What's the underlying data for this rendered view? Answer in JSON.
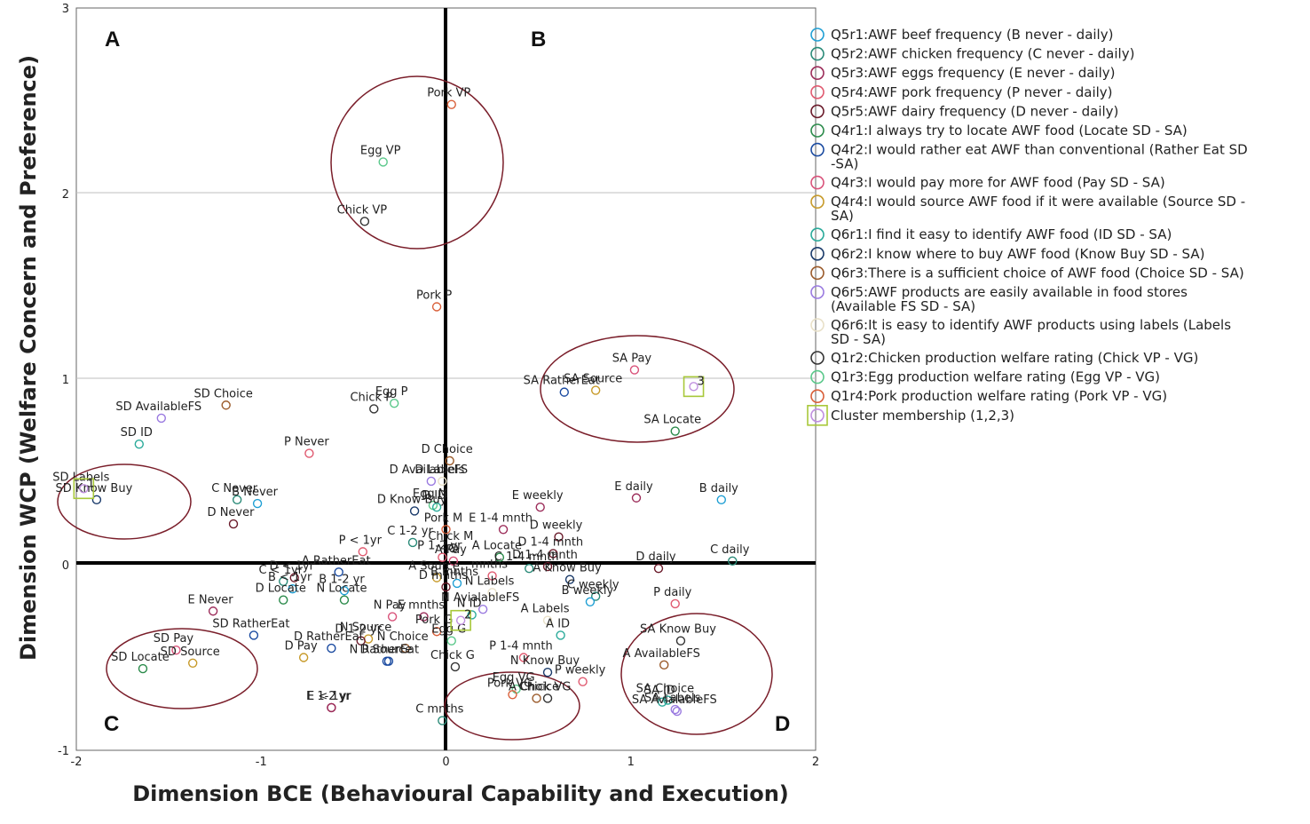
{
  "chart_data": {
    "type": "scatter",
    "xlabel": "Dimension BCE (Behavioural Capability and Execution)",
    "ylabel": "Dimension WCP (Welfare Concern and Preference)",
    "xlim": [
      -2,
      2
    ],
    "ylim": [
      -1,
      3
    ],
    "xticks": [
      -2,
      -1,
      0,
      1,
      2
    ],
    "yticks": [
      -1,
      0,
      1,
      2,
      3
    ],
    "grid": "horizontal",
    "quadrants": [
      "A",
      "B",
      "C",
      "D"
    ],
    "legend": [
      {
        "label": "Q5r1:AWF beef frequency (B never - daily)",
        "color": "#1f9fd4"
      },
      {
        "label": "Q5r2:AWF chicken frequency (C never - daily)",
        "color": "#2a8a78"
      },
      {
        "label": "Q5r3:AWF eggs frequency (E never - daily)",
        "color": "#9c2d5a"
      },
      {
        "label": "Q5r4:AWF pork frequency (P never - daily)",
        "color": "#e05a70"
      },
      {
        "label": "Q5r5:AWF dairy frequency (D never - daily)",
        "color": "#6a1a2a"
      },
      {
        "label": "Q4r1:I always try to locate AWF food (Locate SD - SA)",
        "color": "#2a8a4a"
      },
      {
        "label": "Q4r2:I would rather eat AWF than conventional (Rather Eat SD -SA)",
        "color": "#1a4aa0"
      },
      {
        "label": "Q4r3:I would pay more for AWF food (Pay SD - SA)",
        "color": "#d9527a"
      },
      {
        "label": "Q4r4:I would source AWF food if it were available (Source SD - SA)",
        "color": "#c79a2a"
      },
      {
        "label": "Q6r1:I find it easy to identify AWF food (ID SD - SA)",
        "color": "#2aaa9a"
      },
      {
        "label": "Q6r2:I know where to buy AWF food (Know Buy SD - SA)",
        "color": "#1a3a6a"
      },
      {
        "label": "Q6r3:There is a sufficient choice of AWF food (Choice SD - SA)",
        "color": "#9a5a2a"
      },
      {
        "label": "Q6r5:AWF products are easily available in food stores (Available FS SD - SA)",
        "color": "#9a7ae0"
      },
      {
        "label": "Q6r6:It is easy to identify AWF products using labels (Labels SD - SA)",
        "color": "#e8e0c8"
      },
      {
        "label": "Q1r2:Chicken production welfare rating (Chick VP - VG)",
        "color": "#333333"
      },
      {
        "label": "Q1r3:Egg production welfare rating (Egg VP - VG)",
        "color": "#5ac88a"
      },
      {
        "label": "Q1r4:Pork production welfare rating (Pork VP - VG)",
        "color": "#d9603a"
      },
      {
        "label": "Cluster membership (1,2,3)",
        "color": "#c090e0",
        "box_color": "#a8c83a"
      }
    ],
    "points": [
      {
        "label": "Pork VP",
        "x": 0.03,
        "y": 2.48,
        "color": "#d9603a"
      },
      {
        "label": "Egg VP",
        "x": -0.34,
        "y": 2.17,
        "color": "#5ac88a"
      },
      {
        "label": "Chick VP",
        "x": -0.44,
        "y": 1.85,
        "color": "#333333"
      },
      {
        "label": "Pork P",
        "x": -0.05,
        "y": 1.39,
        "color": "#d9603a"
      },
      {
        "label": "SA Pay",
        "x": 1.02,
        "y": 1.05,
        "color": "#d9527a"
      },
      {
        "label": "SA Source",
        "x": 0.81,
        "y": 0.94,
        "color": "#c79a2a"
      },
      {
        "label": "SA RatherEat",
        "x": 0.64,
        "y": 0.93,
        "color": "#1a4aa0"
      },
      {
        "label": "SA Locate",
        "x": 1.24,
        "y": 0.72,
        "color": "#2a8a4a"
      },
      {
        "label": "SD Choice",
        "x": -1.19,
        "y": 0.86,
        "color": "#9a5a2a"
      },
      {
        "label": "SD AvailableFS",
        "x": -1.54,
        "y": 0.79,
        "color": "#9a7ae0"
      },
      {
        "label": "SD ID",
        "x": -1.66,
        "y": 0.65,
        "color": "#2aaa9a"
      },
      {
        "label": "Chick P",
        "x": -0.39,
        "y": 0.84,
        "color": "#333333"
      },
      {
        "label": "Egg P",
        "x": -0.28,
        "y": 0.87,
        "color": "#5ac88a"
      },
      {
        "label": "P Never",
        "x": -0.74,
        "y": 0.6,
        "color": "#e05a70"
      },
      {
        "label": "D Choice",
        "x": 0.02,
        "y": 0.56,
        "color": "#9a5a2a"
      },
      {
        "label": "D AvailableFS",
        "x": -0.08,
        "y": 0.45,
        "color": "#9a7ae0"
      },
      {
        "label": "D Labels",
        "x": -0.02,
        "y": 0.45,
        "color": "#e8e0c8"
      },
      {
        "label": "SD Labels",
        "x": -1.96,
        "y": 0.41,
        "color": "#e8e0c8"
      },
      {
        "label": "SD Know Buy",
        "x": -1.89,
        "y": 0.35,
        "color": "#1a3a6a"
      },
      {
        "label": "C Never",
        "x": -1.13,
        "y": 0.35,
        "color": "#2a8a78"
      },
      {
        "label": "B Never",
        "x": -1.02,
        "y": 0.33,
        "color": "#1f9fd4"
      },
      {
        "label": "D Never",
        "x": -1.15,
        "y": 0.22,
        "color": "#6a1a2a"
      },
      {
        "label": "E weekly",
        "x": 0.51,
        "y": 0.31,
        "color": "#9c2d5a"
      },
      {
        "label": "E daily",
        "x": 1.03,
        "y": 0.36,
        "color": "#9c2d5a"
      },
      {
        "label": "B daily",
        "x": 1.49,
        "y": 0.35,
        "color": "#1f9fd4"
      },
      {
        "label": "Egg M",
        "x": -0.07,
        "y": 0.32,
        "color": "#5ac88a"
      },
      {
        "label": "D ID",
        "x": -0.05,
        "y": 0.31,
        "color": "#2aaa9a"
      },
      {
        "label": "D Know Buy",
        "x": -0.17,
        "y": 0.29,
        "color": "#1a3a6a"
      },
      {
        "label": "Pork M",
        "x": 0.0,
        "y": 0.19,
        "color": "#d9603a"
      },
      {
        "label": "Chick M",
        "x": 0.04,
        "y": 0.09,
        "color": "#333333"
      },
      {
        "label": "C 1-2 yr",
        "x": -0.18,
        "y": 0.12,
        "color": "#2a8a78"
      },
      {
        "label": "E 1-4 mnth",
        "x": 0.31,
        "y": 0.19,
        "color": "#9c2d5a"
      },
      {
        "label": "D weekly",
        "x": 0.61,
        "y": 0.15,
        "color": "#6a1a2a"
      },
      {
        "label": "P < 1yr",
        "x": -0.45,
        "y": 0.07,
        "color": "#e05a70"
      },
      {
        "label": "A Locate",
        "x": 0.29,
        "y": 0.04,
        "color": "#2a8a4a"
      },
      {
        "label": "D 1-4 mnth",
        "x": 0.58,
        "y": 0.06,
        "color": "#6a1a2a"
      },
      {
        "label": "P 1-2 yr",
        "x": -0.02,
        "y": 0.04,
        "color": "#e05a70"
      },
      {
        "label": "A Pay",
        "x": 0.04,
        "y": 0.02,
        "color": "#d9527a"
      },
      {
        "label": "D daily",
        "x": 1.15,
        "y": -0.02,
        "color": "#6a1a2a"
      },
      {
        "label": "C daily",
        "x": 1.55,
        "y": 0.02,
        "color": "#2a8a78"
      },
      {
        "label": "D < 1yr",
        "x": -0.82,
        "y": -0.07,
        "color": "#6a1a2a"
      },
      {
        "label": "C < 1yr",
        "x": -0.88,
        "y": -0.09,
        "color": "#2a8a78"
      },
      {
        "label": "A Source",
        "x": -0.05,
        "y": -0.07,
        "color": "#c79a2a"
      },
      {
        "label": "A RatherEat",
        "x": -0.58,
        "y": -0.04,
        "color": "#1a4aa0"
      },
      {
        "label": "D 1-4 mnth",
        "x": 0.55,
        "y": -0.01,
        "color": "#6a1a2a"
      },
      {
        "label": "B mnths",
        "x": 0.06,
        "y": -0.1,
        "color": "#1f9fd4"
      },
      {
        "label": "mnths",
        "x": 0.25,
        "y": -0.06,
        "color": "#e05a70"
      },
      {
        "label": "C 1-4 mnth",
        "x": 0.45,
        "y": -0.02,
        "color": "#2a8a78"
      },
      {
        "label": "A Know Buy",
        "x": 0.67,
        "y": -0.08,
        "color": "#1a3a6a"
      },
      {
        "label": "B < 1yr",
        "x": -0.83,
        "y": -0.13,
        "color": "#1f9fd4"
      },
      {
        "label": "B 1-2 yr",
        "x": -0.55,
        "y": -0.14,
        "color": "#1f9fd4"
      },
      {
        "label": "D mnths",
        "x": 0.0,
        "y": -0.12,
        "color": "#6a1a2a"
      },
      {
        "label": "N Labels",
        "x": 0.25,
        "y": -0.15,
        "color": "#e8e0c8"
      },
      {
        "label": "C weekly",
        "x": 0.81,
        "y": -0.17,
        "color": "#2a8a78"
      },
      {
        "label": "P daily",
        "x": 1.24,
        "y": -0.21,
        "color": "#e05a70"
      },
      {
        "label": "E Never",
        "x": -1.26,
        "y": -0.25,
        "color": "#9c2d5a"
      },
      {
        "label": "D Locate",
        "x": -0.88,
        "y": -0.19,
        "color": "#2a8a4a"
      },
      {
        "label": "N Locate",
        "x": -0.55,
        "y": -0.19,
        "color": "#2a8a4a"
      },
      {
        "label": "N AvialableFS",
        "x": 0.2,
        "y": -0.24,
        "color": "#9a7ae0"
      },
      {
        "label": "B weekly",
        "x": 0.78,
        "y": -0.2,
        "color": "#1f9fd4"
      },
      {
        "label": "N Pay",
        "x": -0.29,
        "y": -0.28,
        "color": "#d9527a"
      },
      {
        "label": "E mnths",
        "x": -0.12,
        "y": -0.28,
        "color": "#9c2d5a"
      },
      {
        "label": "N ID",
        "x": 0.14,
        "y": -0.27,
        "color": "#2aaa9a"
      },
      {
        "label": "A Labels",
        "x": 0.55,
        "y": -0.3,
        "color": "#e8e0c8"
      },
      {
        "label": "SD RatherEat",
        "x": -1.04,
        "y": -0.38,
        "color": "#1a4aa0"
      },
      {
        "label": "N Source",
        "x": -0.42,
        "y": -0.4,
        "color": "#c79a2a"
      },
      {
        "label": "D 1-2 yr",
        "x": -0.46,
        "y": -0.41,
        "color": "#6a1a2a"
      },
      {
        "label": "Pork G",
        "x": -0.05,
        "y": -0.36,
        "color": "#d9603a"
      },
      {
        "label": "Egg G",
        "x": 0.03,
        "y": -0.41,
        "color": "#5ac88a"
      },
      {
        "label": "A ID",
        "x": 0.62,
        "y": -0.38,
        "color": "#2aaa9a"
      },
      {
        "label": "D RatherEat",
        "x": -0.62,
        "y": -0.45,
        "color": "#1a4aa0"
      },
      {
        "label": "N Choice",
        "x": -0.22,
        "y": -0.45,
        "color": "#9a5a2a"
      },
      {
        "label": "P 1-4 mnth",
        "x": 0.42,
        "y": -0.5,
        "color": "#e05a70"
      },
      {
        "label": "SA Know Buy",
        "x": 1.27,
        "y": -0.41,
        "color": "#333333"
      },
      {
        "label": "SD Pay",
        "x": -1.46,
        "y": -0.46,
        "color": "#d9527a"
      },
      {
        "label": "D Pay",
        "x": -0.77,
        "y": -0.5,
        "color": "#c79a2a"
      },
      {
        "label": "Chick G",
        "x": 0.05,
        "y": -0.55,
        "color": "#333333"
      },
      {
        "label": "N Know Buy",
        "x": 0.55,
        "y": -0.58,
        "color": "#1a3a6a"
      },
      {
        "label": "A AvailableFS",
        "x": 1.18,
        "y": -0.54,
        "color": "#9a5a2a"
      },
      {
        "label": "SD Source",
        "x": -1.37,
        "y": -0.53,
        "color": "#c79a2a"
      },
      {
        "label": "SD Locate",
        "x": -1.64,
        "y": -0.56,
        "color": "#2a8a4a"
      },
      {
        "label": "D Source",
        "x": -0.31,
        "y": -0.52,
        "color": "#1a4aa0"
      },
      {
        "label": "N RatherEat",
        "x": -0.32,
        "y": -0.52,
        "color": "#1a4aa0"
      },
      {
        "label": "Egg VG",
        "x": 0.38,
        "y": -0.67,
        "color": "#5ac88a"
      },
      {
        "label": "Pork VG",
        "x": 0.36,
        "y": -0.7,
        "color": "#d9603a"
      },
      {
        "label": "A Choice",
        "x": 0.49,
        "y": -0.72,
        "color": "#9a5a2a"
      },
      {
        "label": "Chick VG",
        "x": 0.55,
        "y": -0.72,
        "color": "#333333"
      },
      {
        "label": "P weekly",
        "x": 0.74,
        "y": -0.63,
        "color": "#e05a70"
      },
      {
        "label": "SA Choice",
        "x": 1.2,
        "y": -0.73,
        "color": "#2aaa9a"
      },
      {
        "label": "SA Labels",
        "x": 1.24,
        "y": -0.78,
        "color": "#9a7ae0"
      },
      {
        "label": "SA ID",
        "x": 1.17,
        "y": -0.74,
        "color": "#2aaa9a"
      },
      {
        "label": "SA AvialableFS",
        "x": 1.25,
        "y": -0.79,
        "color": "#9a7ae0"
      },
      {
        "label": "E < 1yr",
        "x": -0.62,
        "y": -0.77,
        "color": "#9c2d5a"
      },
      {
        "label": "E 1-2 yr",
        "x": -0.62,
        "y": -0.77,
        "color": "#9c2d5a"
      },
      {
        "label": "C mnths",
        "x": -0.02,
        "y": -0.84,
        "color": "#2a8a78"
      }
    ],
    "cluster_markers": [
      {
        "label": "1",
        "x": -1.96,
        "y": 0.41
      },
      {
        "label": "2",
        "x": 0.08,
        "y": -0.3
      },
      {
        "label": "3",
        "x": 1.34,
        "y": 0.96
      }
    ]
  }
}
